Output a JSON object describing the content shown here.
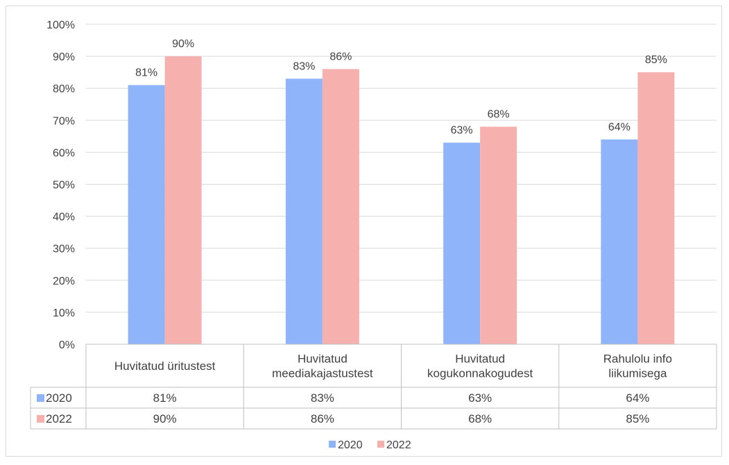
{
  "chart_data": {
    "type": "bar",
    "categories": [
      [
        "Huvitatud üritustest"
      ],
      [
        "Huvitatud",
        "meediakajastustest"
      ],
      [
        "Huvitatud",
        "kogukonnakogudest"
      ],
      [
        "Rahulolu info",
        "liikumisega"
      ]
    ],
    "series": [
      {
        "name": "2020",
        "values": [
          81,
          83,
          63,
          64
        ],
        "labels": [
          "81%",
          "83%",
          "63%",
          "64%"
        ],
        "color": "#8fb4f9"
      },
      {
        "name": "2022",
        "values": [
          90,
          86,
          68,
          85
        ],
        "labels": [
          "90%",
          "86%",
          "68%",
          "85%"
        ],
        "color": "#f6b1ae"
      }
    ],
    "ylim": [
      0,
      100
    ],
    "yticks": [
      "0%",
      "10%",
      "20%",
      "30%",
      "40%",
      "50%",
      "60%",
      "70%",
      "80%",
      "90%",
      "100%"
    ],
    "grid": true,
    "data_table": true,
    "legend_position": "bottom"
  }
}
